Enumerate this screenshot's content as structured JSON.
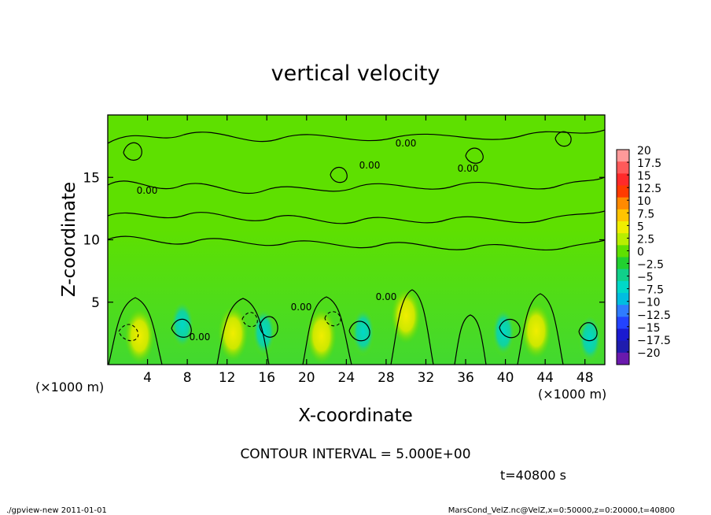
{
  "chart_data": {
    "type": "heatmap",
    "title": "vertical velocity",
    "xlabel": "X-coordinate",
    "ylabel": "Z-coordinate",
    "x_unit": "(×1000 m)",
    "xlim": [
      0,
      50
    ],
    "ylim": [
      0,
      20
    ],
    "x_ticks": [
      4,
      8,
      12,
      16,
      20,
      24,
      28,
      32,
      36,
      40,
      44,
      48
    ],
    "y_ticks": [
      5,
      10,
      15
    ],
    "colorbar": {
      "labels": [
        "20",
        "17.5",
        "15",
        "12.5",
        "10",
        "7.5",
        "5",
        "2.5",
        "0",
        "−2.5",
        "−5",
        "−7.5",
        "−10",
        "−12.5",
        "−15",
        "−17.5",
        "−20"
      ],
      "colors": [
        "#ff9a9a",
        "#ff5a5a",
        "#ff2a2a",
        "#ff3b00",
        "#ff8a00",
        "#ffc400",
        "#f0ee00",
        "#b8ee00",
        "#5fe000",
        "#22d030",
        "#10d08a",
        "#00d8c8",
        "#00bde0",
        "#2f7cff",
        "#2343ff",
        "#1a1ad0",
        "#1f1cae",
        "#6a19ad"
      ]
    },
    "contour_interval": "CONTOUR INTERVAL = 5.000E+00",
    "contour_labels": [
      "0.00",
      "0.00",
      "0.00",
      "0.00",
      "0.00",
      "0.00",
      "0.00"
    ],
    "features": [
      {
        "kind": "updraft",
        "x": 3.2,
        "z": 2.3,
        "value": 7.5
      },
      {
        "kind": "updraft",
        "x": 12.6,
        "z": 2.5,
        "value": 6.5
      },
      {
        "kind": "updraft",
        "x": 21.5,
        "z": 2.3,
        "value": 7.5
      },
      {
        "kind": "updraft",
        "x": 30.0,
        "z": 3.9,
        "value": 6.0
      },
      {
        "kind": "updraft",
        "x": 43.1,
        "z": 2.7,
        "value": 7.5
      },
      {
        "kind": "downdraft",
        "x": 7.5,
        "z": 3.2,
        "value": -6.0
      },
      {
        "kind": "downdraft",
        "x": 15.7,
        "z": 2.6,
        "value": -5.5
      },
      {
        "kind": "downdraft",
        "x": 25.7,
        "z": 2.6,
        "value": -7.0
      },
      {
        "kind": "downdraft",
        "x": 39.8,
        "z": 2.6,
        "value": -6.5
      },
      {
        "kind": "downdraft",
        "x": 48.5,
        "z": 2.1,
        "value": -6.0
      }
    ]
  },
  "footer": {
    "contour_interval": "CONTOUR INTERVAL = 5.000E+00",
    "time": "t=40800 s",
    "left_note": "./gpview-new   2011-01-01",
    "right_note": "MarsCond_VelZ.nc@VelZ,x=0:50000,z=0:20000,t=40800"
  }
}
